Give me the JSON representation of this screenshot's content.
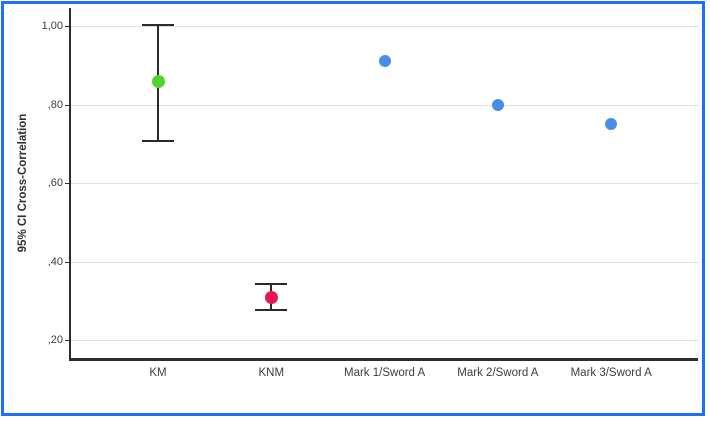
{
  "chart_data": {
    "type": "scatter",
    "title": "",
    "xlabel": "",
    "ylabel": "95% CI Cross-Correlation",
    "categories": [
      "KM",
      "KNM",
      "Mark 1/Sword A",
      "Mark 2/Sword A",
      "Mark 3/Sword A"
    ],
    "points": [
      {
        "category": "KM",
        "mean": 0.86,
        "ci_low": 0.71,
        "ci_high": 1.0,
        "has_error_bar": true,
        "color": "#4ed42f",
        "diameter": 13
      },
      {
        "category": "KNM",
        "mean": 0.31,
        "ci_low": 0.28,
        "ci_high": 0.34,
        "has_error_bar": true,
        "color": "#e81650",
        "diameter": 13
      },
      {
        "category": "Mark 1/Sword A",
        "mean": 0.91,
        "has_error_bar": false,
        "color": "#4a8ce8",
        "diameter": 12
      },
      {
        "category": "Mark 2/Sword A",
        "mean": 0.8,
        "has_error_bar": false,
        "color": "#4a8ce8",
        "diameter": 12
      },
      {
        "category": "Mark 3/Sword A",
        "mean": 0.75,
        "has_error_bar": false,
        "color": "#4a8ce8",
        "diameter": 12
      }
    ],
    "yticks": [
      {
        "value": 1.0,
        "label": "1,00"
      },
      {
        "value": 0.8,
        "label": ",80"
      },
      {
        "value": 0.6,
        "label": ",60"
      },
      {
        "value": 0.4,
        "label": ",40"
      },
      {
        "value": 0.2,
        "label": ",20"
      }
    ],
    "ylim": [
      0.15,
      1.05
    ],
    "grid": "horizontal",
    "legend": "none",
    "colors": {
      "frame": "#1e70fb",
      "gridline": "#d9e2e0",
      "axis": "#2d2d2d",
      "tick_text": "#3d3d3d",
      "background": "#ffffff"
    }
  }
}
